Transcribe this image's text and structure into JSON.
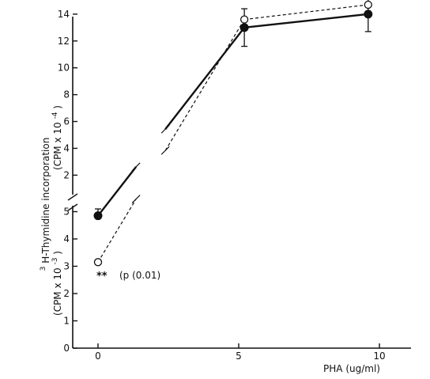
{
  "chart_data": {
    "type": "line",
    "xlabel": "PHA (ug/ml)",
    "ylabel_main": "H-Thymidine  incorporation",
    "ylabel_superscript": "3",
    "ylabel_upper_unit": "(CPM x 10",
    "ylabel_upper_exp": "-4",
    "ylabel_lower_unit": "(CPM x 10",
    "ylabel_lower_exp": "-3",
    "xlim": [
      0,
      10
    ],
    "x_ticks": [
      "0",
      "5",
      "10"
    ],
    "y_upper_range": [
      1,
      14
    ],
    "y_upper_ticks": [
      "2",
      "4",
      "6",
      "8",
      "10",
      "12",
      "14"
    ],
    "y_lower_range": [
      0,
      5
    ],
    "y_lower_ticks": [
      "0",
      "1",
      "2",
      "3",
      "4",
      "5"
    ],
    "axis_break": true,
    "series": [
      {
        "marker": "filled-circle",
        "line_style": "solid",
        "points": [
          {
            "x": 0,
            "y": 4.85,
            "scale": "lower",
            "err": 0.25
          },
          {
            "x": 5.2,
            "y": 13.0,
            "scale": "upper",
            "err": 1.4
          },
          {
            "x": 9.6,
            "y": 14.0,
            "scale": "upper",
            "err": 1.3
          }
        ]
      },
      {
        "marker": "open-circle",
        "line_style": "dashed",
        "points": [
          {
            "x": 0,
            "y": 3.15,
            "scale": "lower",
            "err": 0
          },
          {
            "x": 5.2,
            "y": 13.6,
            "scale": "upper",
            "err": 0
          },
          {
            "x": 9.6,
            "y": 14.7,
            "scale": "upper",
            "err": 0
          }
        ]
      }
    ],
    "annotation": {
      "stars": "**",
      "text": "(p (0.01)"
    }
  }
}
